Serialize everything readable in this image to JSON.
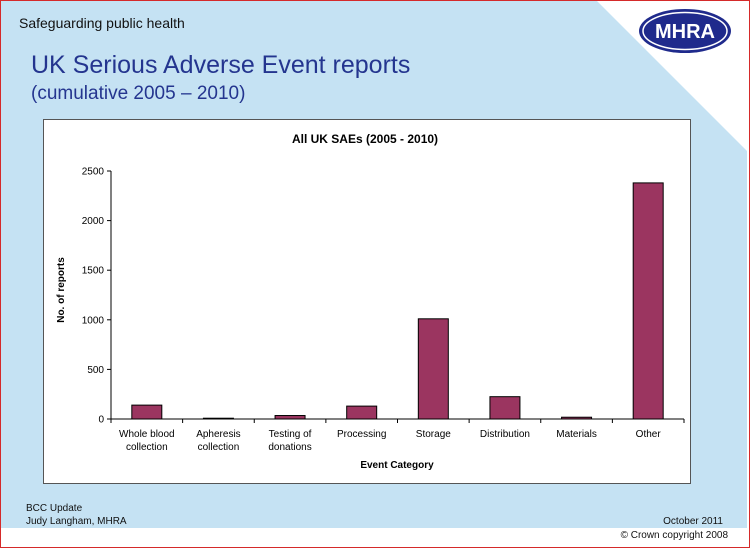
{
  "header": {
    "tagline": "Safeguarding public health",
    "logo_text": "MHRA",
    "title": "UK Serious Adverse Event reports",
    "subtitle": "(cumulative 2005 – 2010)"
  },
  "footer": {
    "line1": "BCC Update",
    "line2": "Judy Langham, MHRA",
    "date": "October 2011",
    "copyright": "© Crown copyright 2008"
  },
  "colors": {
    "slide_bg": "#c5e2f3",
    "title": "#24358f",
    "bar": "#9b3560",
    "logo_bg": "#1f2a8c"
  },
  "chart_data": {
    "type": "bar",
    "title": "All UK SAEs (2005 - 2010)",
    "xlabel": "Event Category",
    "ylabel": "No. of reports",
    "ylim": [
      0,
      2500
    ],
    "yticks": [
      0,
      500,
      1000,
      1500,
      2000,
      2500
    ],
    "grid": false,
    "categories": [
      [
        "Whole blood",
        "collection"
      ],
      [
        "Apheresis",
        "collection"
      ],
      [
        "Testing of",
        "donations"
      ],
      [
        "Processing"
      ],
      [
        "Storage"
      ],
      [
        "Distribution"
      ],
      [
        "Materials"
      ],
      [
        "Other"
      ]
    ],
    "values": [
      140,
      8,
      35,
      130,
      1010,
      225,
      18,
      2380
    ]
  }
}
